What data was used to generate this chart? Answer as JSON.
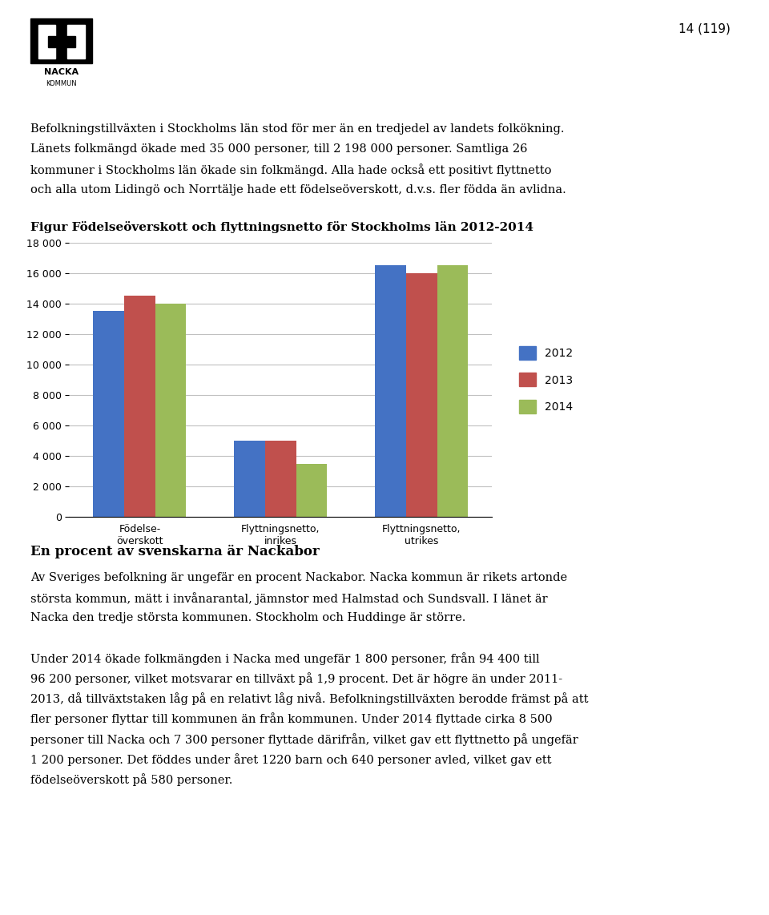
{
  "title": "Figur Födelseöverskott och flyttningsnetto för Stockholms län 2012-2014",
  "categories": [
    "Födelse-\növerskott",
    "Flyttningsnetto,\ninrikes",
    "Flyttningsnetto,\nutrikes"
  ],
  "years": [
    "2012",
    "2013",
    "2014"
  ],
  "values_födelse": [
    13500,
    14500,
    14000
  ],
  "values_inrikes": [
    5000,
    5000,
    3500
  ],
  "values_utrikes": [
    16500,
    16000,
    16500
  ],
  "colors": {
    "2012": "#4472C4",
    "2013": "#C0504D",
    "2014": "#9BBB59"
  },
  "ylim": [
    0,
    18000
  ],
  "yticks": [
    0,
    2000,
    4000,
    6000,
    8000,
    10000,
    12000,
    14000,
    16000,
    18000
  ],
  "background_color": "#FFFFFF",
  "chart_bg_color": "#FFFFFF",
  "grid_color": "#C0C0C0",
  "bar_width": 0.22,
  "figsize": [
    9.6,
    11.42
  ],
  "dpi": 100,
  "page_number": "14 (119)"
}
